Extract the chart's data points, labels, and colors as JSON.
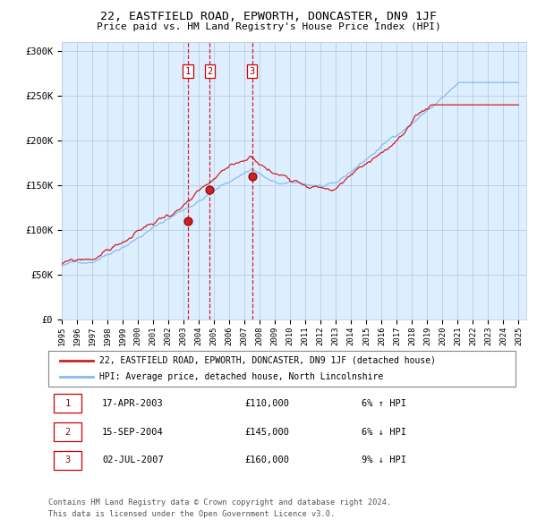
{
  "title": "22, EASTFIELD ROAD, EPWORTH, DONCASTER, DN9 1JF",
  "subtitle": "Price paid vs. HM Land Registry's House Price Index (HPI)",
  "background_color": "#ffffff",
  "plot_bg_color": "#ddeeff",
  "hpi_color": "#88bbee",
  "price_color": "#cc2222",
  "ylim": [
    0,
    310000
  ],
  "yticks": [
    0,
    50000,
    100000,
    150000,
    200000,
    250000,
    300000
  ],
  "ytick_labels": [
    "£0",
    "£50K",
    "£100K",
    "£150K",
    "£200K",
    "£250K",
    "£300K"
  ],
  "transactions": [
    {
      "num": 1,
      "date_label": "17-APR-2003",
      "date_x": 2003.29,
      "price": 110000,
      "pct": "6%",
      "dir": "↑"
    },
    {
      "num": 2,
      "date_label": "15-SEP-2004",
      "date_x": 2004.71,
      "price": 145000,
      "pct": "6%",
      "dir": "↓"
    },
    {
      "num": 3,
      "date_label": "02-JUL-2007",
      "date_x": 2007.5,
      "price": 160000,
      "pct": "9%",
      "dir": "↓"
    }
  ],
  "legend_line1": "22, EASTFIELD ROAD, EPWORTH, DONCASTER, DN9 1JF (detached house)",
  "legend_line2": "HPI: Average price, detached house, North Lincolnshire",
  "footer1": "Contains HM Land Registry data © Crown copyright and database right 2024.",
  "footer2": "This data is licensed under the Open Government Licence v3.0.",
  "xmin": 1995.0,
  "xmax": 2025.5
}
